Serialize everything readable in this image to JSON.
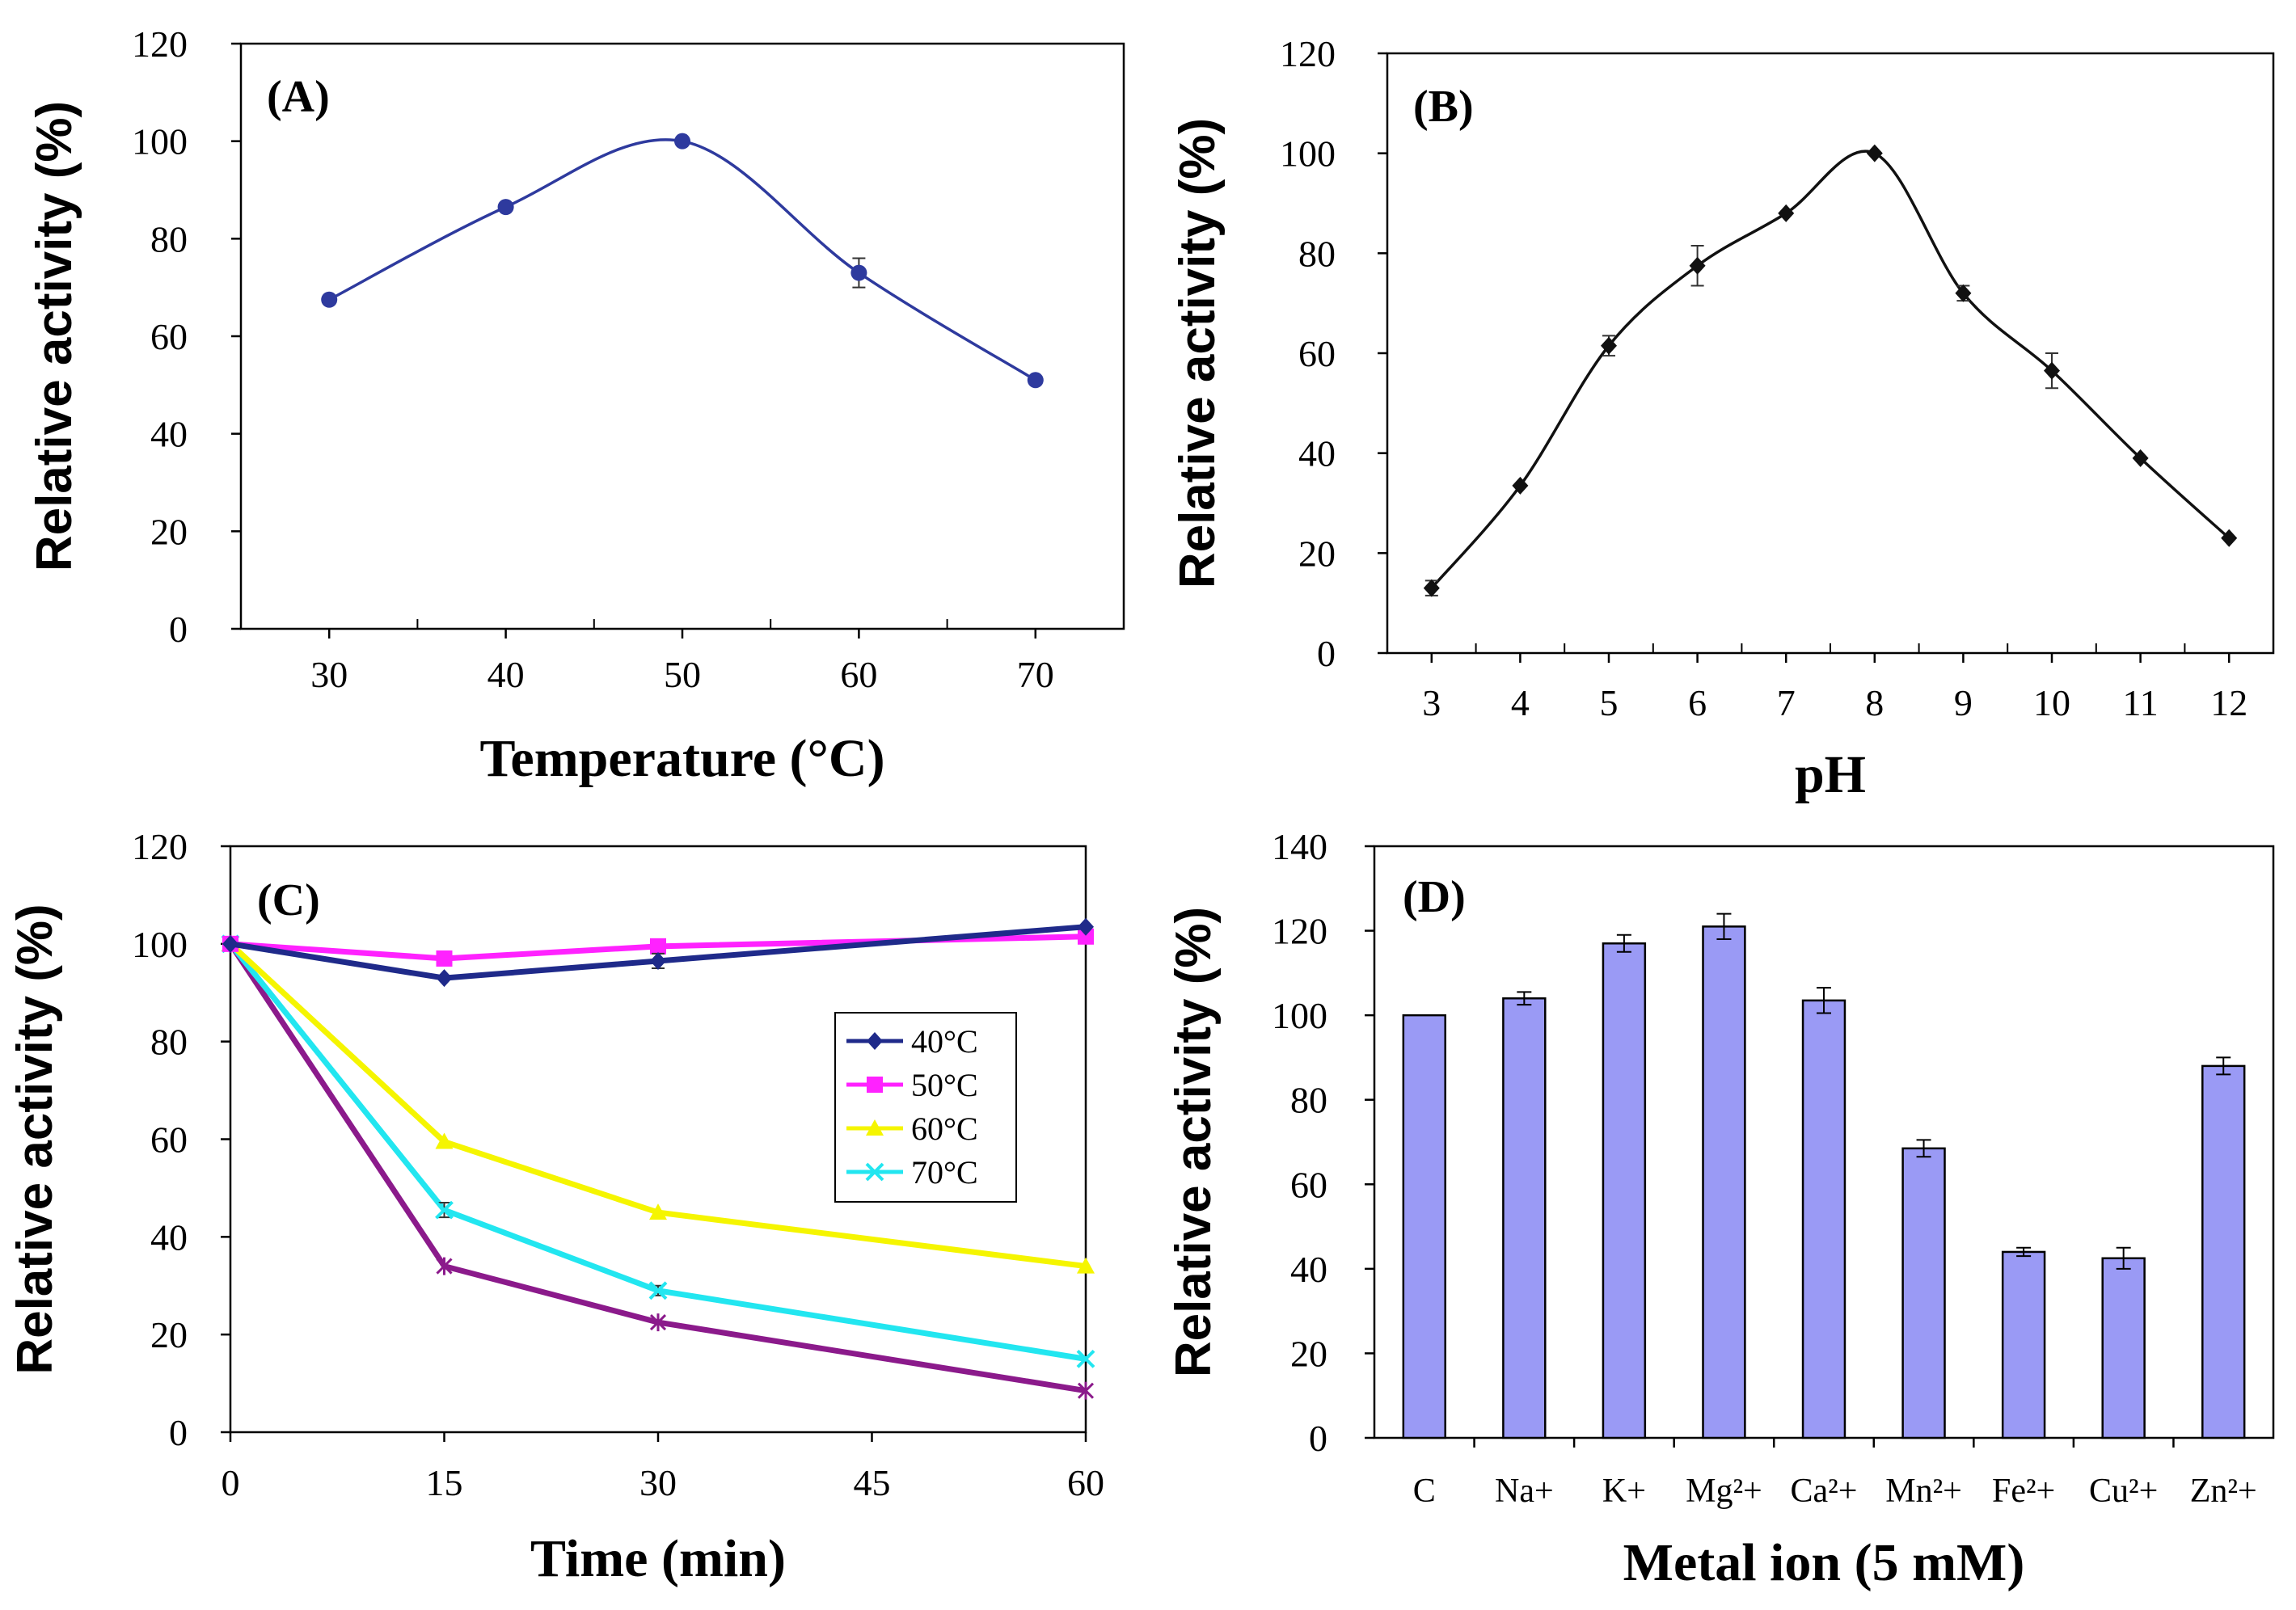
{
  "chart_data": [
    {
      "id": "A",
      "type": "line",
      "panel_label": "(A)",
      "xlabel": "Temperature (°C)",
      "ylabel": "Relative activity (%)",
      "xlim": [
        25,
        75
      ],
      "ylim": [
        0,
        120
      ],
      "xticks": [
        30,
        40,
        50,
        60,
        70
      ],
      "yticks": [
        0,
        20,
        40,
        60,
        80,
        100,
        120
      ],
      "smooth": true,
      "grid": false,
      "series": [
        {
          "name": "Temperature",
          "color": "#2e3a9e",
          "marker": "circle",
          "x": [
            30,
            40,
            50,
            60,
            70
          ],
          "y": [
            67.5,
            86.5,
            100,
            73,
            51
          ],
          "err": [
            0,
            0,
            0,
            3,
            0
          ]
        }
      ]
    },
    {
      "id": "B",
      "type": "line",
      "panel_label": "(B)",
      "xlabel": "pH",
      "ylabel": "Relative activity (%)",
      "xlim": [
        2.5,
        12.5
      ],
      "ylim": [
        0,
        120
      ],
      "xticks": [
        3,
        4,
        5,
        6,
        7,
        8,
        9,
        10,
        11,
        12
      ],
      "yticks": [
        0,
        20,
        40,
        60,
        80,
        100,
        120
      ],
      "smooth": true,
      "grid": false,
      "series": [
        {
          "name": "pH",
          "color": "#111111",
          "marker": "diamond",
          "x": [
            3,
            4,
            5,
            6,
            7,
            8,
            9,
            10,
            11,
            12
          ],
          "y": [
            13,
            33.5,
            61.5,
            77.5,
            88,
            100,
            72,
            56.5,
            39,
            23
          ],
          "err": [
            1.5,
            0,
            2,
            4,
            0,
            0,
            1.5,
            3.5,
            0,
            0
          ]
        }
      ]
    },
    {
      "id": "C",
      "type": "line",
      "panel_label": "(C)",
      "xlabel": "Time (min)",
      "ylabel": "Relative activity (%)",
      "xlim": [
        0,
        60
      ],
      "ylim": [
        0,
        120
      ],
      "xticks": [
        0,
        15,
        30,
        45,
        60
      ],
      "yticks": [
        0,
        20,
        40,
        60,
        80,
        100,
        120
      ],
      "smooth": false,
      "grid": false,
      "legend": "center-right",
      "series": [
        {
          "name": "40°C",
          "color": "#1f2a8a",
          "marker": "diamond",
          "legend": true,
          "x": [
            0,
            15,
            30,
            60
          ],
          "y": [
            100,
            93,
            96.5,
            103.5
          ],
          "err": [
            0,
            0,
            1.5,
            0
          ]
        },
        {
          "name": "50°C",
          "color": "#ff22ff",
          "marker": "square",
          "legend": true,
          "x": [
            0,
            15,
            30,
            60
          ],
          "y": [
            100,
            97,
            99.5,
            101.5
          ],
          "err": [
            0,
            0,
            0,
            0
          ]
        },
        {
          "name": "60°C",
          "color": "#f5f500",
          "marker": "triangle",
          "legend": true,
          "x": [
            0,
            15,
            30,
            60
          ],
          "y": [
            100,
            59.5,
            45,
            34
          ],
          "err": [
            0,
            0,
            0,
            0
          ]
        },
        {
          "name": "70°C",
          "color": "#22e6f0",
          "marker": "x",
          "legend": true,
          "x": [
            0,
            15,
            30,
            60
          ],
          "y": [
            100,
            45.5,
            29,
            15
          ],
          "err": [
            0,
            1.5,
            1,
            0
          ]
        },
        {
          "name": "",
          "color": "#8b1a8b",
          "marker": "star",
          "legend": false,
          "x": [
            0,
            15,
            30,
            60
          ],
          "y": [
            100,
            34,
            22.5,
            8.5
          ],
          "err": [
            0,
            0,
            0,
            0
          ]
        }
      ]
    },
    {
      "id": "D",
      "type": "bar",
      "panel_label": "(D)",
      "xlabel": "Metal ion (5 mM)",
      "ylabel": "Relative activity (%)",
      "ylim": [
        0,
        140
      ],
      "yticks": [
        0,
        20,
        40,
        60,
        80,
        100,
        120,
        140
      ],
      "grid": false,
      "color": "#9a9af5",
      "categories": [
        "C",
        "Na+",
        "K+",
        "Mg²+",
        "Ca²+",
        "Mn²+",
        "Fe²+",
        "Cu²+",
        "Zn²+"
      ],
      "values": [
        100,
        104,
        117,
        121,
        103.5,
        68.5,
        44,
        42.5,
        88
      ],
      "err": [
        0,
        1.5,
        2,
        3,
        3,
        2,
        1,
        2.5,
        2
      ]
    }
  ]
}
